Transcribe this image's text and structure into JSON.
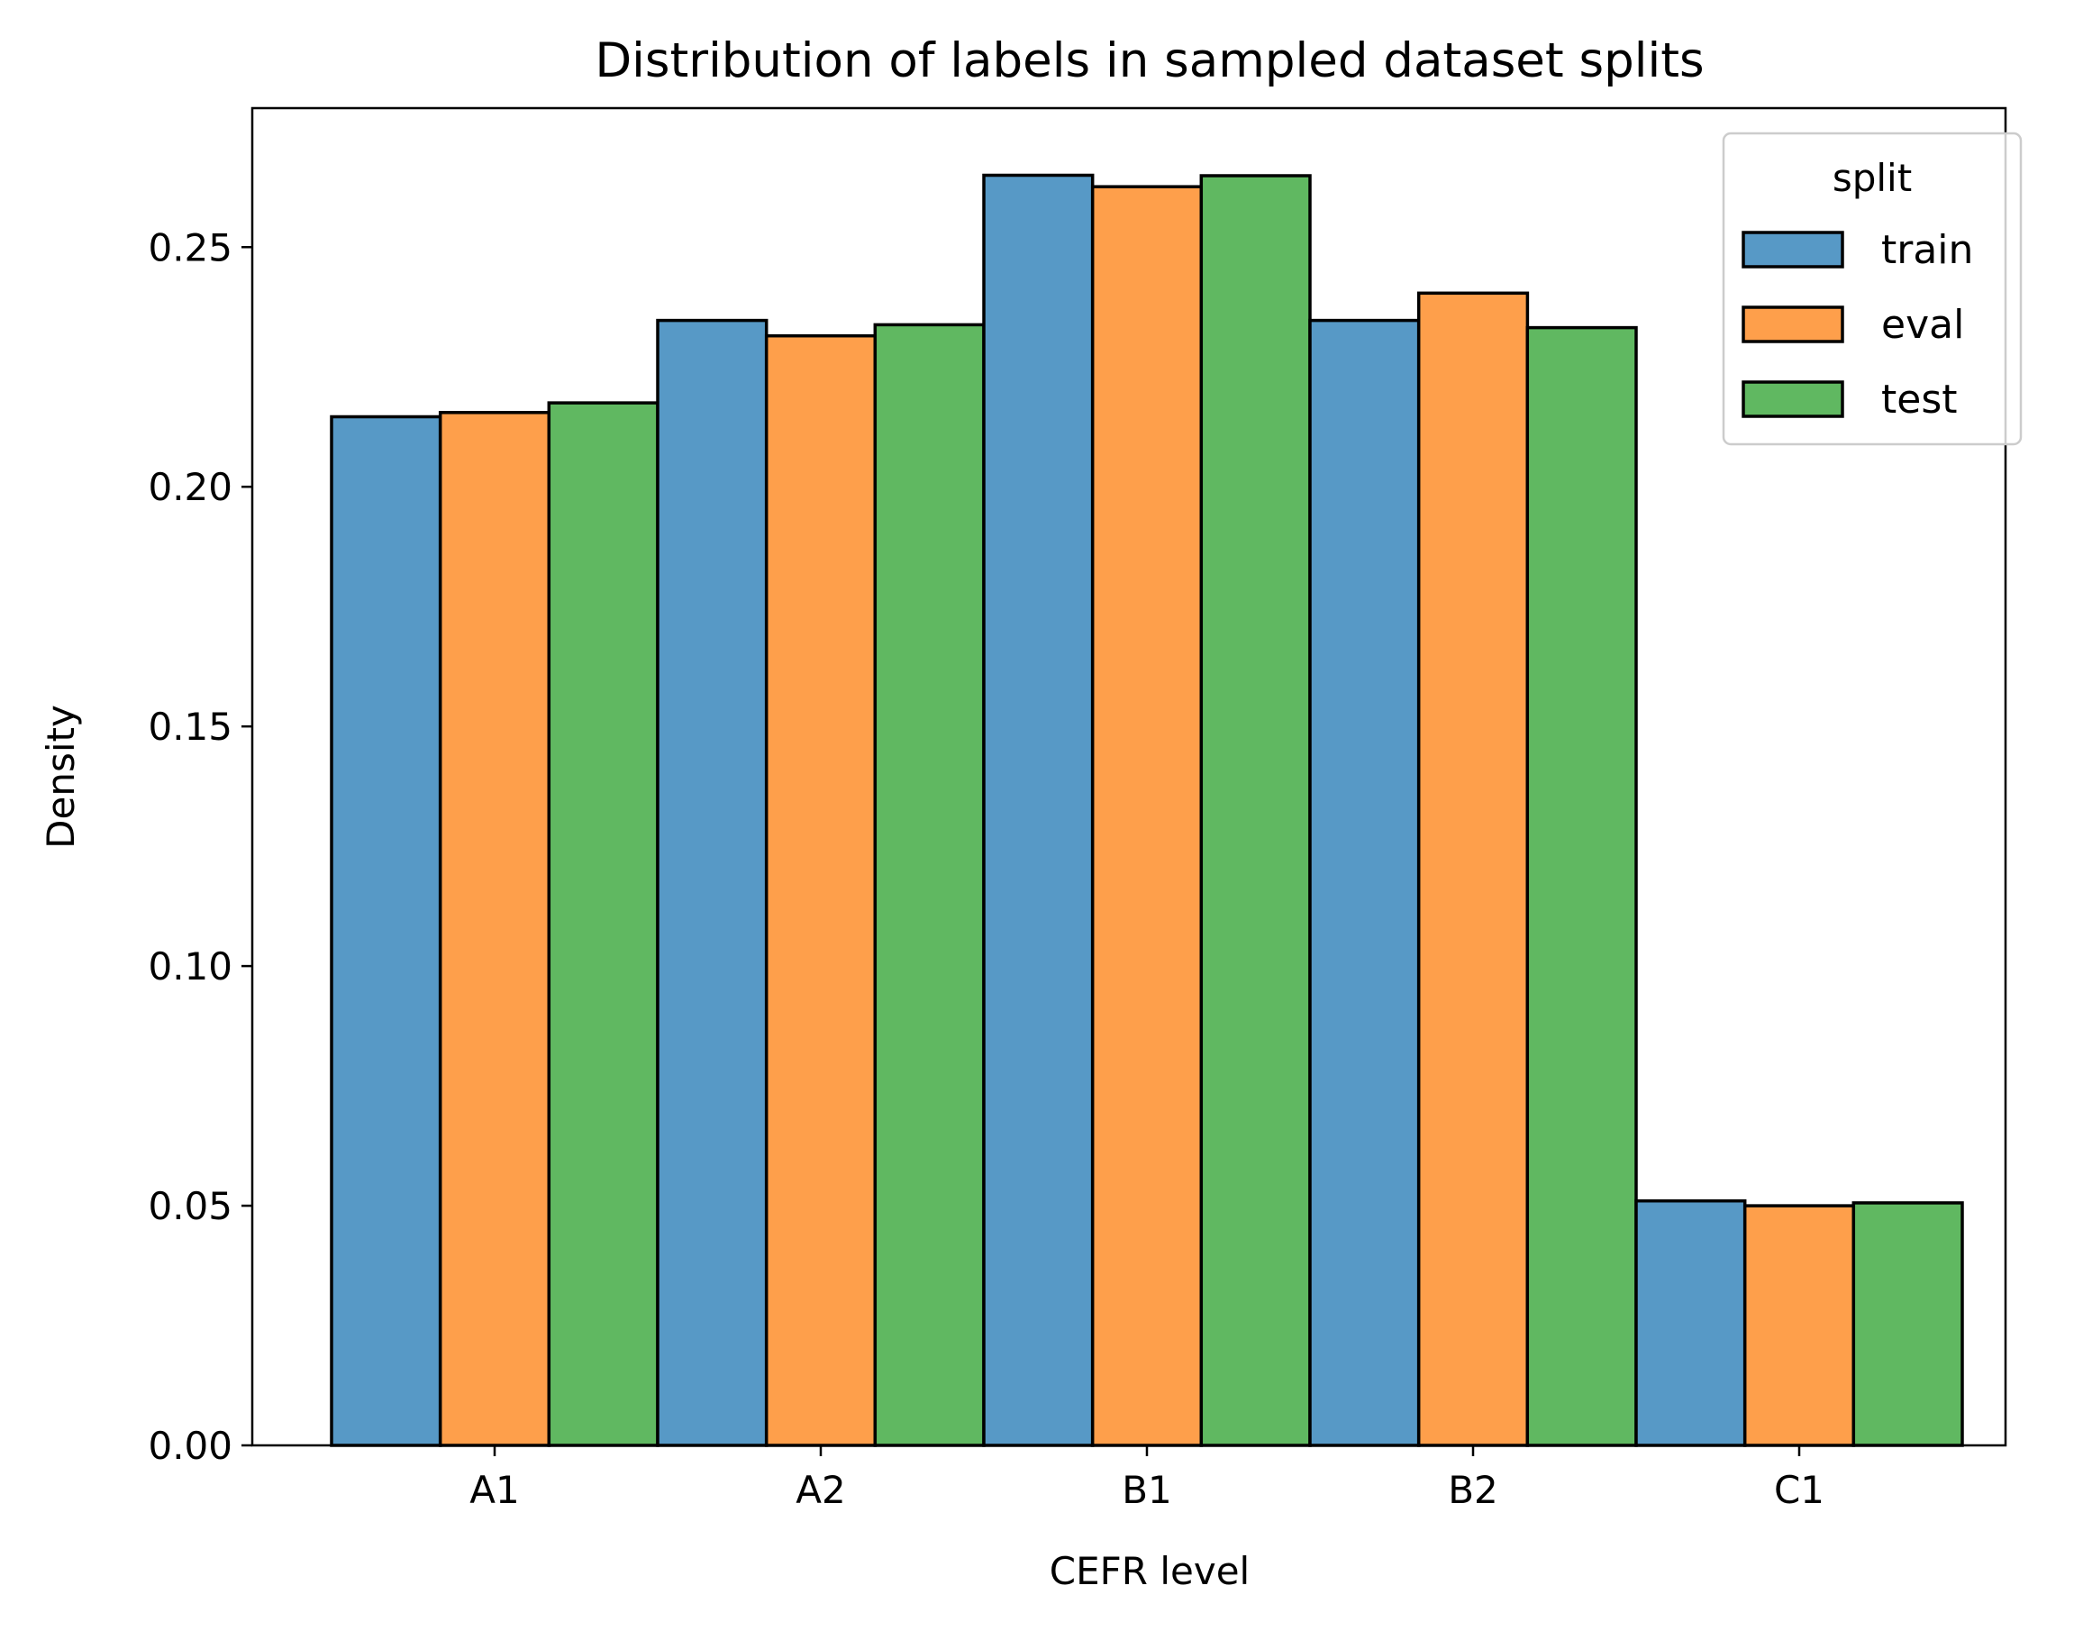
{
  "chart_data": {
    "type": "bar",
    "title": "Distribution of labels in sampled dataset splits",
    "xlabel": "CEFR level",
    "ylabel": "Density",
    "categories": [
      "A1",
      "A2",
      "B1",
      "B2",
      "C1"
    ],
    "series": [
      {
        "name": "train",
        "color": "#5799c6",
        "values": [
          0.2146,
          0.2347,
          0.265,
          0.2347,
          0.051
        ]
      },
      {
        "name": "eval",
        "color": "#fe9f4b",
        "values": [
          0.2155,
          0.2315,
          0.2626,
          0.2404,
          0.05
        ]
      },
      {
        "name": "test",
        "color": "#60b861",
        "values": [
          0.2175,
          0.2338,
          0.2649,
          0.2332,
          0.0506
        ]
      }
    ],
    "ylim": [
      0,
      0.279
    ],
    "yticks": [
      "0.00",
      "0.05",
      "0.10",
      "0.15",
      "0.20",
      "0.25"
    ],
    "legend": {
      "title": "split",
      "placement": "top-right"
    },
    "grid": false
  }
}
